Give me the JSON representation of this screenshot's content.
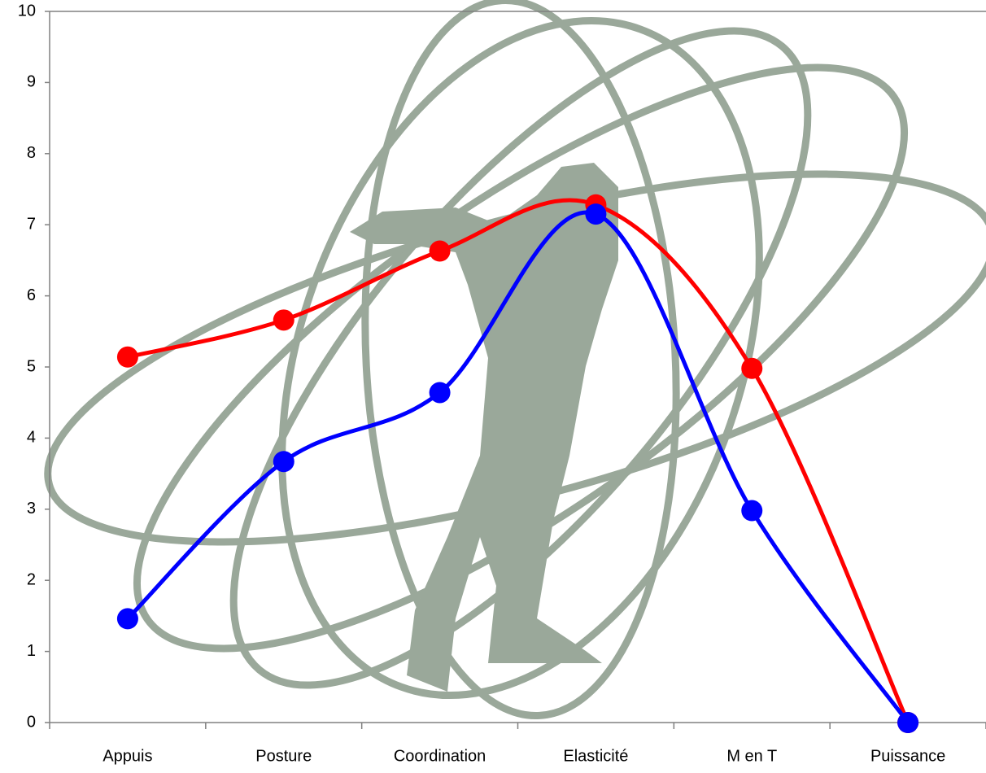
{
  "chart_data": {
    "type": "line",
    "categories": [
      "Appuis",
      "Posture",
      "Coordination",
      "Elasticité",
      "M en T",
      "Puissance"
    ],
    "series": [
      {
        "color": "#ff0000",
        "values": [
          5.14,
          5.66,
          6.63,
          7.28,
          4.98,
          0
        ]
      },
      {
        "color": "#0000ff",
        "values": [
          1.46,
          3.67,
          4.64,
          7.15,
          2.98,
          0
        ]
      }
    ],
    "ylim": [
      0,
      10
    ],
    "yticks": [
      0,
      1,
      2,
      3,
      4,
      5,
      6,
      7,
      8,
      9,
      10
    ],
    "smooth": true,
    "grid": false
  }
}
